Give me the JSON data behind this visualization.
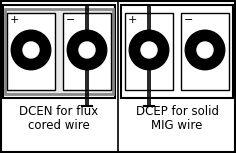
{
  "left_label_line1": "DCEN for flux",
  "left_label_line2": "cored wire",
  "right_label_line1": "DCEP for solid",
  "right_label_line2": "MIG wire",
  "bg_color": "#ffffff",
  "border_color": "#000000",
  "gray_border_color": "#888888",
  "label_fontsize": 8.5,
  "sign_fontsize": 8,
  "wire_lw": 2.0,
  "connector_lw": 1.0,
  "outer_lw": 1.5,
  "gray_lw": 2.0
}
